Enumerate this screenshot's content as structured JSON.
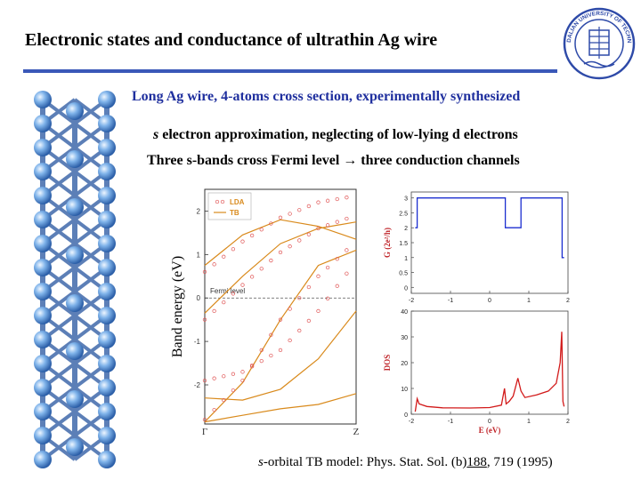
{
  "header": {
    "title": "Electronic states and conductance of ultrathin Ag wire",
    "logo_text": "DALIAN UNIVERSITY OF TECHNOLOGY",
    "accent_color": "#3a58b8"
  },
  "bullets": {
    "line1": "Long Ag wire, 4-atoms cross section, experimentally synthesized",
    "line2_italic": "s",
    "line2_rest": " electron approximation, neglecting of low-lying d electrons",
    "line3_a": "Three s-bands cross Fermi level ",
    "line3_arrow": "→",
    "line3_b": " three conduction channels"
  },
  "reference": {
    "italic": "s",
    "text_a": "-orbital TB model: Phys. Stat. Sol. (b)",
    "volume": "188",
    "text_b": ", 719 (1995)"
  },
  "chart_data": [
    {
      "type": "line",
      "ylabel": "Band energy (eV)",
      "x_ticks": [
        "Γ",
        "Z"
      ],
      "y_ticks": [
        "-2",
        "-1",
        "0",
        "1",
        "2"
      ],
      "ylim": [
        -2.9,
        2.5
      ],
      "legend": [
        "LDA",
        "TB"
      ],
      "legend_placement": "top-left",
      "annotation": "Fermi level",
      "fermi_level": 0,
      "series": [
        {
          "name": "TB",
          "style": "line",
          "x": [
            0,
            0.25,
            0.5,
            0.75,
            1
          ],
          "y": [
            0.75,
            1.45,
            1.8,
            1.65,
            1.35
          ]
        },
        {
          "name": "TB",
          "style": "line",
          "x": [
            0,
            0.25,
            0.5,
            0.75,
            1
          ],
          "y": [
            -0.35,
            0.5,
            1.25,
            1.6,
            1.75
          ]
        },
        {
          "name": "TB",
          "style": "line",
          "x": [
            0,
            0.25,
            0.5,
            0.75,
            1
          ],
          "y": [
            -2.85,
            -1.95,
            -0.5,
            0.75,
            1.1
          ]
        },
        {
          "name": "TB",
          "style": "line",
          "x": [
            0,
            0.25,
            0.5,
            0.75,
            1
          ],
          "y": [
            -2.3,
            -2.35,
            -2.1,
            -1.4,
            -0.3
          ]
        },
        {
          "name": "TB",
          "style": "line",
          "x": [
            0,
            0.25,
            0.5,
            0.75,
            1
          ],
          "y": [
            -2.85,
            -2.7,
            -2.55,
            -2.45,
            -2.2
          ]
        },
        {
          "name": "LDA",
          "style": "dots",
          "x": [
            0,
            0.25,
            0.5,
            0.75,
            1
          ],
          "y": [
            0.6,
            1.3,
            1.85,
            2.2,
            2.35
          ]
        },
        {
          "name": "LDA",
          "style": "dots",
          "x": [
            0,
            0.25,
            0.5,
            0.75,
            1
          ],
          "y": [
            -0.5,
            0.3,
            1.05,
            1.6,
            1.9
          ]
        },
        {
          "name": "LDA",
          "style": "dots",
          "x": [
            0,
            0.25,
            0.5,
            0.75,
            1
          ],
          "y": [
            -2.8,
            -1.9,
            -0.5,
            0.5,
            1.3
          ]
        },
        {
          "name": "LDA",
          "style": "dots",
          "x": [
            0,
            0.25,
            0.5,
            0.75,
            1
          ],
          "y": [
            -1.9,
            -1.7,
            -1.2,
            -0.3,
            0.85
          ]
        }
      ]
    },
    {
      "type": "line",
      "ylabel": "G (2e²/h)",
      "ylim": [
        -0.2,
        3.2
      ],
      "xlim": [
        -2,
        2
      ],
      "x_ticks": [
        "-2",
        "-1",
        "0",
        "1",
        "2"
      ],
      "y_ticks": [
        "0",
        "0.5",
        "1",
        "1.5",
        "2",
        "2.5",
        "3"
      ],
      "series": [
        {
          "x": [
            -1.9,
            -1.85,
            -1.85,
            0.4,
            0.4,
            0.8,
            0.8,
            1.85,
            1.85,
            1.9
          ],
          "y": [
            2,
            2,
            3,
            3,
            2,
            2,
            3,
            3,
            1,
            1
          ]
        }
      ]
    },
    {
      "type": "line",
      "ylabel": "DOS",
      "xlabel": "E (eV)",
      "xlim": [
        -2,
        2
      ],
      "ylim": [
        0,
        40
      ],
      "x_ticks": [
        "-2",
        "-1",
        "0",
        "1",
        "2"
      ],
      "y_ticks": [
        "0",
        "10",
        "20",
        "30",
        "40"
      ],
      "series": [
        {
          "x": [
            -1.9,
            -1.85,
            -1.8,
            -1.6,
            -1.2,
            -0.5,
            0,
            0.3,
            0.38,
            0.42,
            0.5,
            0.6,
            0.72,
            0.8,
            0.9,
            1.2,
            1.5,
            1.7,
            1.8,
            1.84,
            1.87,
            1.9
          ],
          "y": [
            1,
            6,
            4,
            3,
            2.5,
            2.4,
            2.6,
            3.5,
            10,
            4,
            5,
            7,
            14,
            9,
            6.5,
            7.5,
            9,
            12,
            20,
            32,
            5,
            3
          ]
        }
      ]
    }
  ]
}
